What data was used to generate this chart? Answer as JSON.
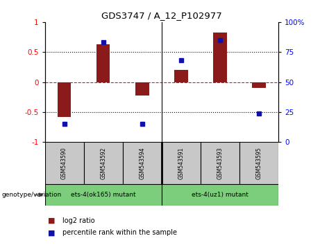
{
  "title": "GDS3747 / A_12_P102977",
  "samples": [
    "GSM543590",
    "GSM543592",
    "GSM543594",
    "GSM543591",
    "GSM543593",
    "GSM543595"
  ],
  "log2_ratio": [
    -0.58,
    0.63,
    -0.22,
    0.2,
    0.82,
    -0.1
  ],
  "percentile_rank": [
    15,
    83,
    15,
    68,
    85,
    24
  ],
  "bar_color": "#8B1A1A",
  "dot_color": "#1111AA",
  "ylim_left": [
    -1,
    1
  ],
  "ylim_right": [
    0,
    100
  ],
  "yticks_left": [
    -1,
    -0.5,
    0,
    0.5,
    1
  ],
  "yticks_right": [
    0,
    25,
    50,
    75,
    100
  ],
  "dotted_lines_black": [
    -0.5,
    0.5
  ],
  "dashed_line_red": 0,
  "group1_label": "ets-4(ok165) mutant",
  "group2_label": "ets-4(uz1) mutant",
  "group_color": "#7CCD7C",
  "sample_box_color": "#C8C8C8",
  "legend_log2": "log2 ratio",
  "legend_pct": "percentile rank within the sample",
  "genotype_label": "genotype/variation"
}
